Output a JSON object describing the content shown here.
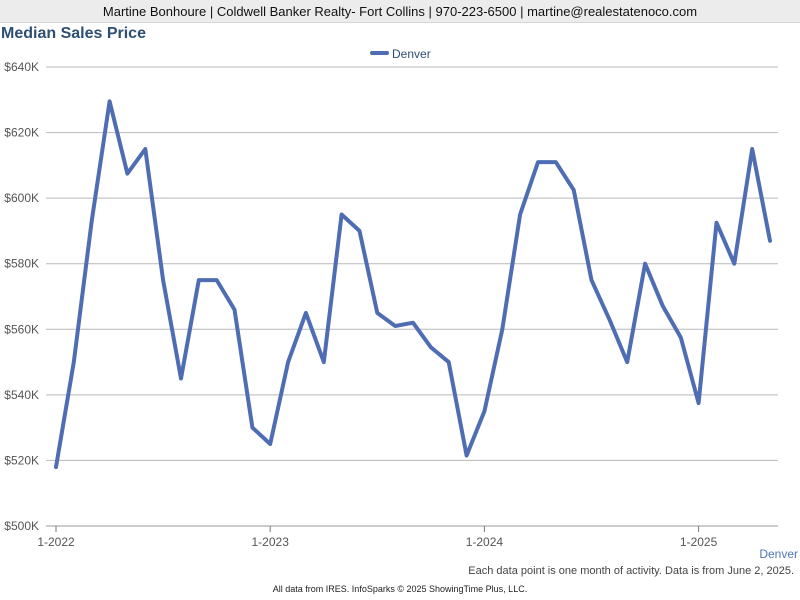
{
  "header": {
    "agent_info": "Martine Bonhoure | Coldwell Banker Realty- Fort Collins | 970-223-6500 | martine@realestatenoco.com"
  },
  "footer": {
    "series_label": "Denver",
    "note": "Each data point is one month of activity. Data is from June 2, 2025.",
    "copyright": "All data from IRES. InfoSparks © 2025 ShowingTime Plus, LLC."
  },
  "chart_data": {
    "type": "line",
    "title": "Median Sales Price",
    "xlabel": "",
    "ylabel": "",
    "x_tick_labels": [
      "1-2022",
      "1-2023",
      "1-2024",
      "1-2025"
    ],
    "y_tick_labels": [
      "$500K",
      "$520K",
      "$540K",
      "$560K",
      "$580K",
      "$600K",
      "$620K",
      "$640K"
    ],
    "ylim": [
      500000,
      640000
    ],
    "grid": true,
    "legend": "top-center",
    "line_color": "#4f6db3",
    "x": [
      "2022-01",
      "2022-02",
      "2022-03",
      "2022-04",
      "2022-05",
      "2022-06",
      "2022-07",
      "2022-08",
      "2022-09",
      "2022-10",
      "2022-11",
      "2022-12",
      "2023-01",
      "2023-02",
      "2023-03",
      "2023-04",
      "2023-05",
      "2023-06",
      "2023-07",
      "2023-08",
      "2023-09",
      "2023-10",
      "2023-11",
      "2023-12",
      "2024-01",
      "2024-02",
      "2024-03",
      "2024-04",
      "2024-05",
      "2024-06",
      "2024-07",
      "2024-08",
      "2024-09",
      "2024-10",
      "2024-11",
      "2024-12",
      "2025-01",
      "2025-02",
      "2025-03",
      "2025-04",
      "2025-05"
    ],
    "series": [
      {
        "name": "Denver",
        "values": [
          518000,
          550000,
          593000,
          629500,
          607500,
          615000,
          575000,
          545000,
          575000,
          575000,
          566000,
          530000,
          525000,
          550000,
          565000,
          550000,
          595000,
          590000,
          565000,
          561000,
          562000,
          554500,
          550000,
          521500,
          535000,
          560000,
          595000,
          611000,
          611000,
          602500,
          575000,
          563000,
          550000,
          580000,
          567000,
          557500,
          537500,
          592500,
          580000,
          615000,
          587000
        ]
      }
    ]
  }
}
